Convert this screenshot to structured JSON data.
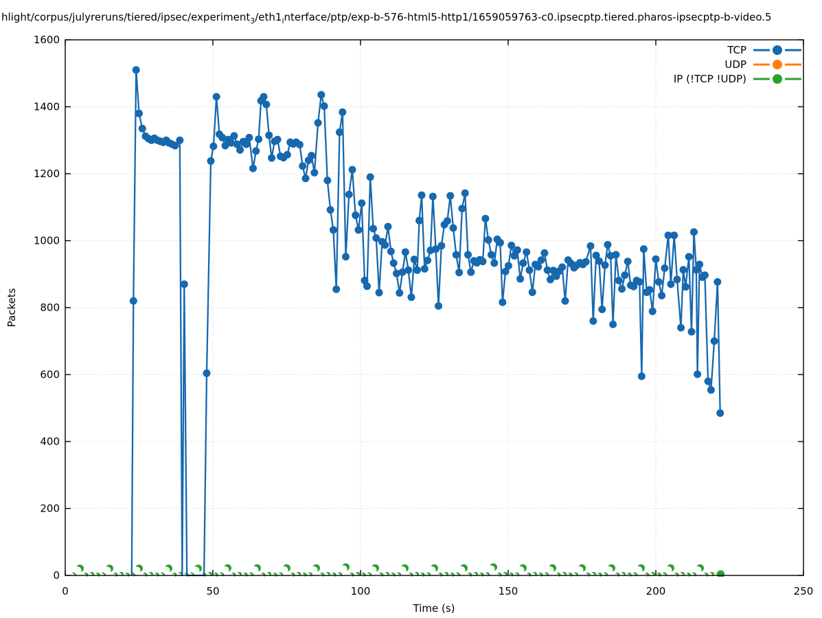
{
  "title": {
    "p1": "hlight/corpus/julyreruns/tiered/ipsec/experiment",
    "s1": "3",
    "p2": "/eth1",
    "s2": "i",
    "p3": "nterface/ptp/exp-b-576-html5-http1/1659059763-c0.ipsecptp.tiered.pharos-ipsecptp-b-video.5"
  },
  "chart_data": {
    "type": "line",
    "title": "hlight/corpus/julyreruns/tiered/ipsec/experiment3/eth1interface/ptp/exp-b-576-html5-http1/1659059763-c0.ipsecptp.tiered.pharos-ipsecptp-b-video.5",
    "xlabel": "Time (s)",
    "ylabel": "Packets",
    "xlim": [
      0,
      250
    ],
    "ylim": [
      0,
      1600
    ],
    "x_ticks": [
      0,
      50,
      100,
      150,
      200,
      250
    ],
    "y_ticks": [
      0,
      200,
      400,
      600,
      800,
      1000,
      1200,
      1400,
      1600
    ],
    "grid": true,
    "grid_color": "#c8c8c8",
    "legend_position": "top-right-inside",
    "legend": [
      {
        "label": "TCP",
        "color": "#1668af"
      },
      {
        "label": "UDP",
        "color": "#ff7f0e"
      },
      {
        "label": "IP (!TCP  !UDP)",
        "color": "#2ca02c"
      }
    ],
    "series": [
      {
        "name": "TCP",
        "color": "#1668af",
        "marker": "filled-circle",
        "line": true,
        "points": [
          [
            22.5,
            0
          ],
          [
            23.1,
            820
          ],
          [
            24,
            1510
          ],
          [
            25,
            1380
          ],
          [
            26.1,
            1335
          ],
          [
            27.2,
            1312
          ],
          [
            28.2,
            1305
          ],
          [
            29.2,
            1300
          ],
          [
            30.2,
            1306
          ],
          [
            31.2,
            1300
          ],
          [
            32.2,
            1297
          ],
          [
            33.2,
            1294
          ],
          [
            34.2,
            1300
          ],
          [
            35.2,
            1292
          ],
          [
            36.2,
            1288
          ],
          [
            37.2,
            1284
          ],
          [
            38.8,
            1300
          ],
          [
            39.6,
            0
          ],
          [
            40.3,
            870
          ],
          [
            41.2,
            0
          ],
          [
            42.6,
            0
          ],
          [
            44.1,
            0
          ],
          [
            45.6,
            0
          ],
          [
            47,
            0
          ],
          [
            47.9,
            604
          ],
          [
            49.3,
            1238
          ],
          [
            50.2,
            1282
          ],
          [
            51.2,
            1430
          ],
          [
            52.2,
            1318
          ],
          [
            53.2,
            1308
          ],
          [
            54.2,
            1284
          ],
          [
            55.2,
            1302
          ],
          [
            56.2,
            1292
          ],
          [
            57.2,
            1313
          ],
          [
            58.2,
            1288
          ],
          [
            59.2,
            1271
          ],
          [
            60.3,
            1296
          ],
          [
            61.3,
            1288
          ],
          [
            62.3,
            1308
          ],
          [
            63.6,
            1216
          ],
          [
            64.6,
            1268
          ],
          [
            65.5,
            1303
          ],
          [
            66.3,
            1418
          ],
          [
            67.2,
            1430
          ],
          [
            68.1,
            1407
          ],
          [
            69,
            1315
          ],
          [
            69.9,
            1247
          ],
          [
            70.9,
            1297
          ],
          [
            71.9,
            1302
          ],
          [
            72.9,
            1252
          ],
          [
            73.9,
            1248
          ],
          [
            75.2,
            1257
          ],
          [
            76.2,
            1294
          ],
          [
            77.2,
            1289
          ],
          [
            78.2,
            1294
          ],
          [
            79.4,
            1287
          ],
          [
            80.4,
            1223
          ],
          [
            81.4,
            1186
          ],
          [
            82.4,
            1240
          ],
          [
            83.4,
            1254
          ],
          [
            84.4,
            1203
          ],
          [
            85.6,
            1352
          ],
          [
            86.7,
            1436
          ],
          [
            87.7,
            1402
          ],
          [
            88.8,
            1180
          ],
          [
            89.8,
            1092
          ],
          [
            90.8,
            1032
          ],
          [
            91.8,
            855
          ],
          [
            92.9,
            1324
          ],
          [
            93.9,
            1384
          ],
          [
            95,
            952
          ],
          [
            96.1,
            1138
          ],
          [
            97.2,
            1212
          ],
          [
            98.3,
            1076
          ],
          [
            99.3,
            1032
          ],
          [
            100.4,
            1112
          ],
          [
            101.4,
            881
          ],
          [
            102.2,
            864
          ],
          [
            103.3,
            1190
          ],
          [
            104.3,
            1036
          ],
          [
            105.3,
            1008
          ],
          [
            106.3,
            845
          ],
          [
            107.3,
            997
          ],
          [
            108.3,
            987
          ],
          [
            109.3,
            1042
          ],
          [
            110.3,
            968
          ],
          [
            111.2,
            933
          ],
          [
            112.2,
            902
          ],
          [
            113.2,
            844
          ],
          [
            114.2,
            906
          ],
          [
            115.2,
            966
          ],
          [
            116.2,
            912
          ],
          [
            117.2,
            831
          ],
          [
            118.2,
            944
          ],
          [
            119.2,
            912
          ],
          [
            119.9,
            1060
          ],
          [
            120.7,
            1136
          ],
          [
            121.7,
            916
          ],
          [
            122.7,
            941
          ],
          [
            123.7,
            971
          ],
          [
            124.5,
            1132
          ],
          [
            125.5,
            975
          ],
          [
            126.4,
            805
          ],
          [
            127.4,
            985
          ],
          [
            128.4,
            1048
          ],
          [
            129.4,
            1059
          ],
          [
            130.4,
            1134
          ],
          [
            131.4,
            1038
          ],
          [
            132.4,
            958
          ],
          [
            133.4,
            905
          ],
          [
            134.4,
            1096
          ],
          [
            135.4,
            1142
          ],
          [
            136.4,
            958
          ],
          [
            137.4,
            906
          ],
          [
            138.4,
            940
          ],
          [
            139.4,
            934
          ],
          [
            140.4,
            943
          ],
          [
            141.4,
            938
          ],
          [
            142.3,
            1066
          ],
          [
            143.3,
            1002
          ],
          [
            144.3,
            958
          ],
          [
            145.3,
            933
          ],
          [
            146.3,
            1004
          ],
          [
            147.3,
            994
          ],
          [
            148.1,
            816
          ],
          [
            149.1,
            908
          ],
          [
            150.1,
            925
          ],
          [
            151.1,
            986
          ],
          [
            152.1,
            955
          ],
          [
            153.1,
            972
          ],
          [
            154.1,
            886
          ],
          [
            155.1,
            933
          ],
          [
            156.2,
            966
          ],
          [
            157.2,
            912
          ],
          [
            158.2,
            846
          ],
          [
            159.2,
            929
          ],
          [
            160.2,
            922
          ],
          [
            161.2,
            942
          ],
          [
            162.3,
            963
          ],
          [
            163.3,
            912
          ],
          [
            164.3,
            884
          ],
          [
            165.3,
            911
          ],
          [
            166.3,
            894
          ],
          [
            167.3,
            909
          ],
          [
            168.3,
            921
          ],
          [
            169.3,
            820
          ],
          [
            170.3,
            942
          ],
          [
            171.3,
            932
          ],
          [
            172.3,
            919
          ],
          [
            173.3,
            927
          ],
          [
            174.3,
            934
          ],
          [
            175.3,
            929
          ],
          [
            176.3,
            937
          ],
          [
            177.9,
            984
          ],
          [
            178.8,
            760
          ],
          [
            179.8,
            956
          ],
          [
            180.8,
            939
          ],
          [
            181.8,
            795
          ],
          [
            182.8,
            927
          ],
          [
            183.7,
            988
          ],
          [
            184.7,
            955
          ],
          [
            185.5,
            750
          ],
          [
            186.5,
            958
          ],
          [
            187.5,
            881
          ],
          [
            188.5,
            856
          ],
          [
            189.5,
            897
          ],
          [
            190.5,
            938
          ],
          [
            191.5,
            867
          ],
          [
            192.5,
            863
          ],
          [
            193.5,
            881
          ],
          [
            194.5,
            877
          ],
          [
            195.2,
            595
          ],
          [
            195.9,
            975
          ],
          [
            196.9,
            846
          ],
          [
            197.9,
            853
          ],
          [
            198.9,
            789
          ],
          [
            200,
            945
          ],
          [
            201,
            877
          ],
          [
            202,
            836
          ],
          [
            203,
            918
          ],
          [
            204.2,
            1016
          ],
          [
            205.1,
            870
          ],
          [
            206.2,
            1016
          ],
          [
            207.2,
            884
          ],
          [
            208.5,
            740
          ],
          [
            209.3,
            913
          ],
          [
            210.1,
            862
          ],
          [
            211.2,
            952
          ],
          [
            212.1,
            728
          ],
          [
            212.9,
            1026
          ],
          [
            213.7,
            913
          ],
          [
            214.1,
            601
          ],
          [
            214.8,
            929
          ],
          [
            215.8,
            891
          ],
          [
            216.6,
            897
          ],
          [
            217.7,
            580
          ],
          [
            218.7,
            554
          ],
          [
            219.8,
            700
          ],
          [
            220.9,
            877
          ],
          [
            221.8,
            485
          ]
        ]
      },
      {
        "name": "UDP",
        "color": "#ff7f0e",
        "marker": "filled-circle",
        "line": true,
        "points": []
      },
      {
        "name": "IP (!TCP  !UDP)",
        "color": "#2ca02c",
        "marker": "filled-circle",
        "line": false,
        "points": [
          [
            3,
            3
          ],
          [
            5,
            21
          ],
          [
            7,
            2
          ],
          [
            9,
            4
          ],
          [
            11,
            2
          ],
          [
            13,
            3
          ],
          [
            15,
            21
          ],
          [
            17,
            2
          ],
          [
            19,
            4
          ],
          [
            21,
            2
          ],
          [
            23,
            3
          ],
          [
            25,
            21
          ],
          [
            27,
            2
          ],
          [
            29,
            4
          ],
          [
            31,
            2
          ],
          [
            33,
            3
          ],
          [
            35,
            21
          ],
          [
            37,
            2
          ],
          [
            39,
            4
          ],
          [
            41,
            2
          ],
          [
            43,
            3
          ],
          [
            45,
            21
          ],
          [
            47,
            2
          ],
          [
            49,
            4
          ],
          [
            51,
            2
          ],
          [
            53,
            3
          ],
          [
            55,
            22
          ],
          [
            57,
            2
          ],
          [
            59,
            4
          ],
          [
            61,
            2
          ],
          [
            63,
            3
          ],
          [
            65,
            22
          ],
          [
            67,
            2
          ],
          [
            69,
            4
          ],
          [
            71,
            2
          ],
          [
            73,
            3
          ],
          [
            75,
            22
          ],
          [
            77,
            2
          ],
          [
            79,
            4
          ],
          [
            81,
            2
          ],
          [
            83,
            3
          ],
          [
            85,
            22
          ],
          [
            87,
            2
          ],
          [
            89,
            4
          ],
          [
            91,
            2
          ],
          [
            93,
            3
          ],
          [
            95,
            25
          ],
          [
            97,
            2
          ],
          [
            99,
            4
          ],
          [
            101,
            2
          ],
          [
            103,
            3
          ],
          [
            105,
            22
          ],
          [
            107,
            2
          ],
          [
            109,
            4
          ],
          [
            111,
            2
          ],
          [
            113,
            3
          ],
          [
            115,
            22
          ],
          [
            117,
            2
          ],
          [
            119,
            4
          ],
          [
            121,
            2
          ],
          [
            123,
            3
          ],
          [
            125,
            22
          ],
          [
            127,
            2
          ],
          [
            129,
            4
          ],
          [
            131,
            2
          ],
          [
            133,
            3
          ],
          [
            135,
            22
          ],
          [
            137,
            2
          ],
          [
            139,
            4
          ],
          [
            141,
            2
          ],
          [
            143,
            3
          ],
          [
            145,
            25
          ],
          [
            147,
            2
          ],
          [
            149,
            4
          ],
          [
            151,
            2
          ],
          [
            153,
            3
          ],
          [
            155,
            22
          ],
          [
            157,
            2
          ],
          [
            159,
            4
          ],
          [
            161,
            2
          ],
          [
            163,
            3
          ],
          [
            165,
            22
          ],
          [
            167,
            2
          ],
          [
            169,
            4
          ],
          [
            171,
            2
          ],
          [
            173,
            3
          ],
          [
            175,
            22
          ],
          [
            177,
            2
          ],
          [
            179,
            4
          ],
          [
            181,
            2
          ],
          [
            183,
            3
          ],
          [
            185,
            22
          ],
          [
            187,
            2
          ],
          [
            189,
            4
          ],
          [
            191,
            2
          ],
          [
            193,
            3
          ],
          [
            195,
            22
          ],
          [
            197,
            2
          ],
          [
            199,
            4
          ],
          [
            201,
            2
          ],
          [
            203,
            3
          ],
          [
            205,
            22
          ],
          [
            207,
            2
          ],
          [
            209,
            4
          ],
          [
            211,
            2
          ],
          [
            213,
            3
          ],
          [
            215,
            22
          ],
          [
            217,
            2
          ],
          [
            219,
            4
          ],
          [
            221,
            2
          ],
          [
            222,
            4
          ]
        ]
      }
    ]
  }
}
